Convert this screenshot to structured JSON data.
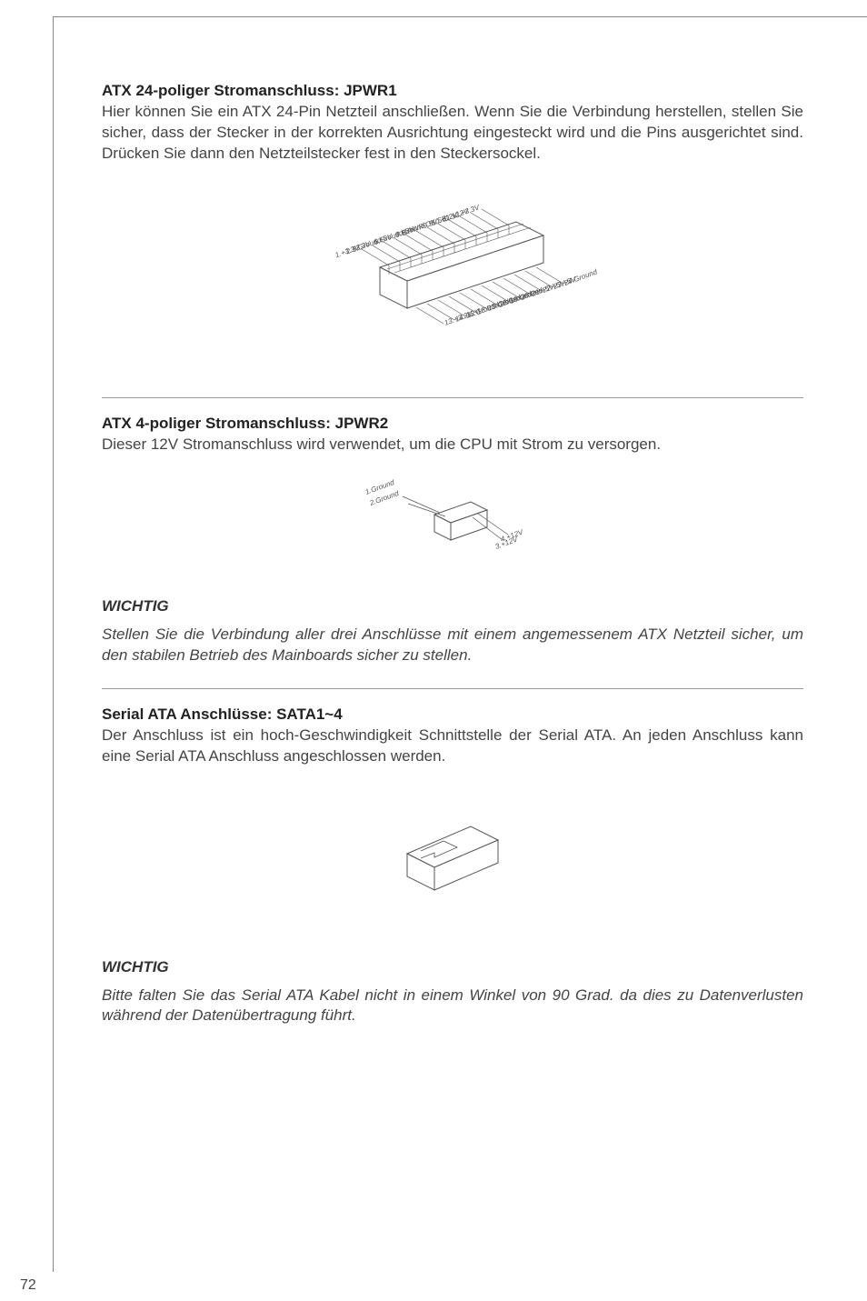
{
  "page_number": "72",
  "sections": {
    "jpwr1": {
      "heading": "ATX 24-poliger Stromanschluss: JPWR1",
      "body": "Hier können Sie ein ATX 24-Pin Netzteil anschließen. Wenn Sie die Verbindung herstellen, stellen Sie sicher, dass der Stecker in der korrekten Ausrichtung eingesteckt wird und die Pins ausgerichtet sind. Drücken Sie dann den Netzteilstecker fest in den Steckersockel."
    },
    "jpwr2": {
      "heading": "ATX 4-poliger Stromanschluss: JPWR2",
      "body": "Dieser 12V Stromanschluss wird verwendet, um die CPU mit Strom zu versorgen."
    },
    "wichtig1": {
      "heading": "WICHTIG",
      "body": "Stellen Sie die Verbindung aller drei Anschlüsse mit einem angemessenem ATX Netzteil sicher, um den stabilen Betrieb des Mainboards sicher zu stellen."
    },
    "sata": {
      "heading": "Serial ATA Anschlüsse: SATA1~4",
      "body": "Der Anschluss ist ein hoch-Geschwindigkeit Schnittstelle der Serial ATA. An jeden Anschluss kann eine Serial ATA Anschluss angeschlossen werden."
    },
    "wichtig2": {
      "heading": "WICHTIG",
      "body": "Bitte falten Sie das Serial ATA Kabel nicht in einem Winkel von 90 Grad. da dies zu Datenverlusten während der Datenübertragung führt."
    }
  },
  "diagrams": {
    "jpwr1": {
      "pins_left": [
        "12.+3.3V",
        "11.+12V",
        "10.+12V",
        "9.5VSB",
        "8.PWR OK",
        "7.Ground",
        "6.+5V",
        "5.Ground",
        "4.+5V",
        "3.Ground",
        "2.+3.3V",
        "1.+3.3V"
      ],
      "pins_right": [
        "24.Ground",
        "23.+5V",
        "22.+5V",
        "21.+5V",
        "20.Res",
        "19.Ground",
        "18.Ground",
        "17.Ground",
        "16.PS-ON#",
        "15.Ground",
        "14.-12V",
        "13.+3.3V"
      ],
      "stroke": "#555555",
      "fill": "#ffffff"
    },
    "jpwr2": {
      "pins_left": [
        "1.Ground",
        "2.Ground"
      ],
      "pins_right": [
        "3.+12V",
        "4.+12V"
      ],
      "stroke": "#555555",
      "fill": "#ffffff"
    },
    "sata": {
      "stroke": "#555555",
      "fill": "#ffffff"
    }
  }
}
